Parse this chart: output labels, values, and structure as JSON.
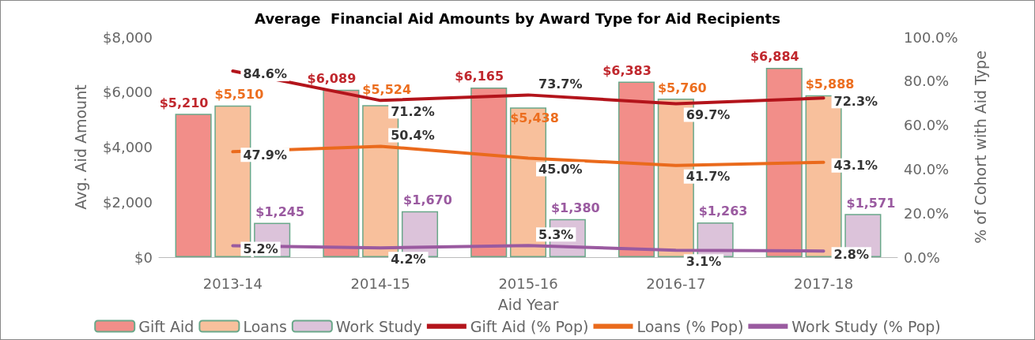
{
  "chart_data": {
    "type": "bar",
    "title": "Average  Financial Aid Amounts by Award Type for Aid Recipients",
    "xlabel": "Aid Year",
    "ylabel": "Avg. Aid Amount",
    "y2label": "% of Cohort with Aid Type",
    "categories": [
      "2013-14",
      "2014-15",
      "2015-16",
      "2016-17",
      "2017-18"
    ],
    "series": [
      {
        "name": "Gift Aid",
        "color": "#f28e89",
        "values": [
          5210,
          6089,
          6165,
          6383,
          6884
        ],
        "value_labels": [
          "$5,210",
          "$6,089",
          "$6,165",
          "$6,383",
          "$6,884"
        ]
      },
      {
        "name": "Loans",
        "color": "#f8c09c",
        "values": [
          5510,
          5524,
          5438,
          5760,
          5888
        ],
        "value_labels": [
          "$5,510",
          "$5,524",
          "$5,438",
          "$5,760",
          "$5,888"
        ]
      },
      {
        "name": "Work Study",
        "color": "#dcc3da",
        "values": [
          1245,
          1670,
          1380,
          1263,
          1571
        ],
        "value_labels": [
          "$1,245",
          "$1,670",
          "$1,380",
          "$1,263",
          "$1,571"
        ]
      },
      {
        "name": "Gift Aid (% Pop)",
        "type": "line",
        "axis": "y2",
        "color": "#b3141b",
        "values": [
          84.6,
          71.2,
          73.7,
          69.7,
          72.3
        ],
        "value_labels": [
          "84.6%",
          "71.2%",
          "73.7%",
          "69.7%",
          "72.3%"
        ]
      },
      {
        "name": "Loans (% Pop)",
        "type": "line",
        "axis": "y2",
        "color": "#ea6a1c",
        "values": [
          47.9,
          50.4,
          45.0,
          41.7,
          43.1
        ],
        "value_labels": [
          "47.9%",
          "50.4%",
          "45.0%",
          "41.7%",
          "43.1%"
        ]
      },
      {
        "name": "Work Study (% Pop)",
        "type": "line",
        "axis": "y2",
        "color": "#9a5aa0",
        "values": [
          5.2,
          4.2,
          5.3,
          3.1,
          2.8
        ],
        "value_labels": [
          "5.2%",
          "4.2%",
          "5.3%",
          "3.1%",
          "2.8%"
        ]
      }
    ],
    "ylim": [
      0,
      8000
    ],
    "yticks": [
      {
        "value": 0,
        "label": "$0"
      },
      {
        "value": 2000,
        "label": "$2,000"
      },
      {
        "value": 4000,
        "label": "$4,000"
      },
      {
        "value": 6000,
        "label": "$6,000"
      },
      {
        "value": 8000,
        "label": "$8,000"
      }
    ],
    "y2lim": [
      0,
      100
    ],
    "y2ticks": [
      {
        "value": 0,
        "label": "0.0%"
      },
      {
        "value": 20,
        "label": "20.0%"
      },
      {
        "value": 40,
        "label": "40.0%"
      },
      {
        "value": 60,
        "label": "60.0%"
      },
      {
        "value": 80,
        "label": "80.0%"
      },
      {
        "value": 100,
        "label": "100.0%"
      }
    ],
    "grid": false,
    "legend": "bottom",
    "marker": "none",
    "line_style": "solid"
  }
}
